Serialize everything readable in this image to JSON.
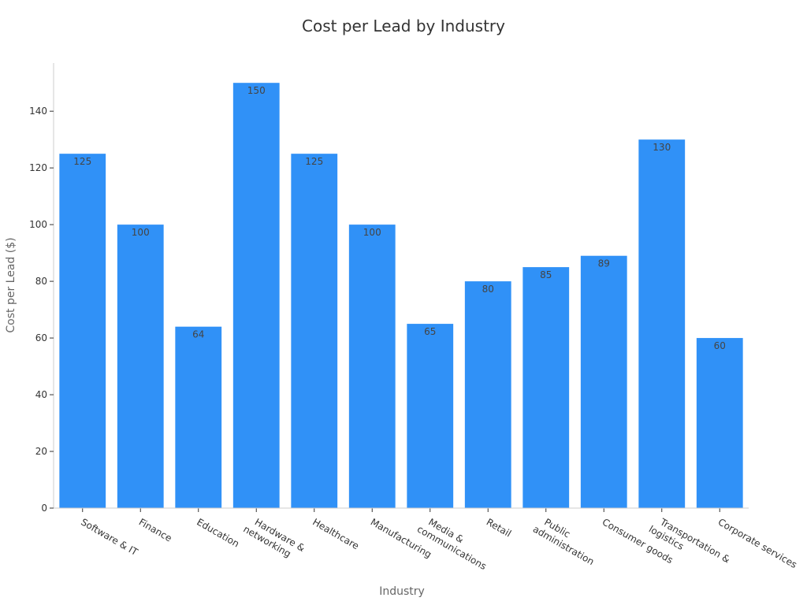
{
  "chart_data": {
    "type": "bar",
    "title": "Cost per Lead by Industry",
    "xlabel": "Industry",
    "ylabel": "Cost per Lead ($)",
    "categories": [
      [
        "Software & IT"
      ],
      [
        "Finance"
      ],
      [
        "Education"
      ],
      [
        "Hardware &",
        "networking"
      ],
      [
        "Healthcare"
      ],
      [
        "Manufacturing"
      ],
      [
        "Media &",
        "communications"
      ],
      [
        "Retail"
      ],
      [
        "Public",
        "administration"
      ],
      [
        "Consumer goods"
      ],
      [
        "Transportation &",
        "logistics"
      ],
      [
        "Corporate services"
      ]
    ],
    "values": [
      125,
      100,
      64,
      150,
      125,
      100,
      65,
      80,
      85,
      89,
      130,
      60
    ],
    "ylim": [
      0,
      157
    ],
    "yticks": [
      0,
      20,
      40,
      60,
      80,
      100,
      120,
      140
    ],
    "grid": false,
    "bar_color": "#3091f7"
  }
}
